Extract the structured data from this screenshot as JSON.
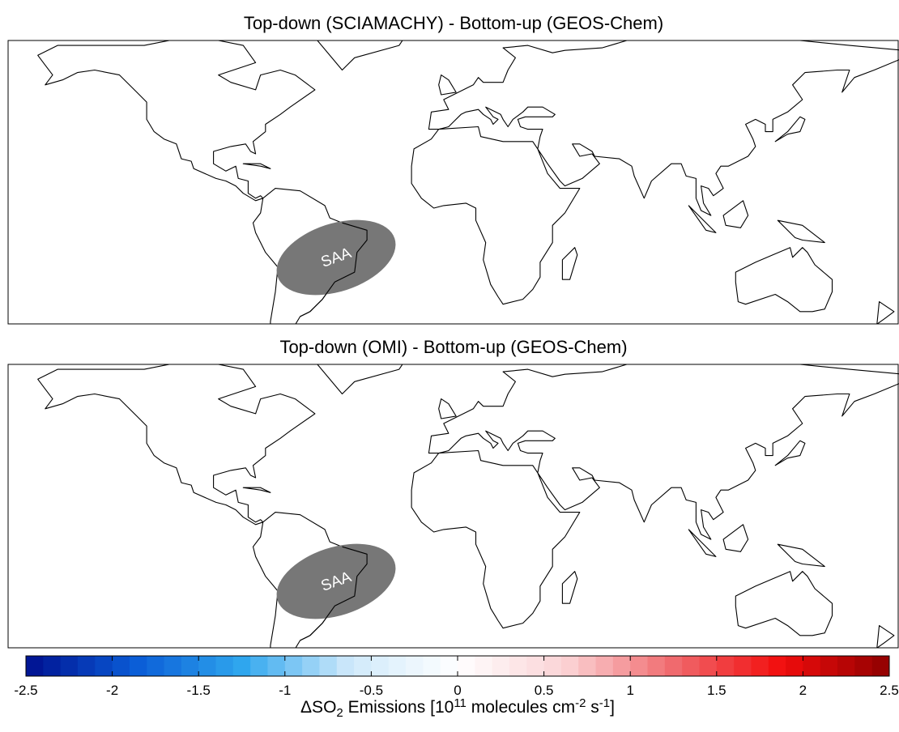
{
  "panels": [
    {
      "title": "Top-down (SCIAMACHY) - Bottom-up (GEOS-Chem)",
      "annotation": "SAA"
    },
    {
      "title": "Top-down (OMI) - Bottom-up (GEOS-Chem)",
      "annotation": "SAA"
    }
  ],
  "colorbar": {
    "lim": [
      -2.5,
      2.5
    ],
    "ticks": [
      -2.5,
      -2,
      -1.5,
      -1,
      -0.5,
      0,
      0.5,
      1,
      1.5,
      2,
      2.5
    ],
    "colors": [
      "#00108f",
      "#0a5bd6",
      "#2fa6ee",
      "#cfe9fb",
      "#ffffff",
      "#fbd3d5",
      "#f06a6e",
      "#f20d0d",
      "#8f0000"
    ],
    "label_parts": [
      "ΔSO",
      "2",
      " Emissions [10",
      "11",
      " molecules cm",
      "-2",
      " s",
      "-1",
      "]"
    ]
  }
}
